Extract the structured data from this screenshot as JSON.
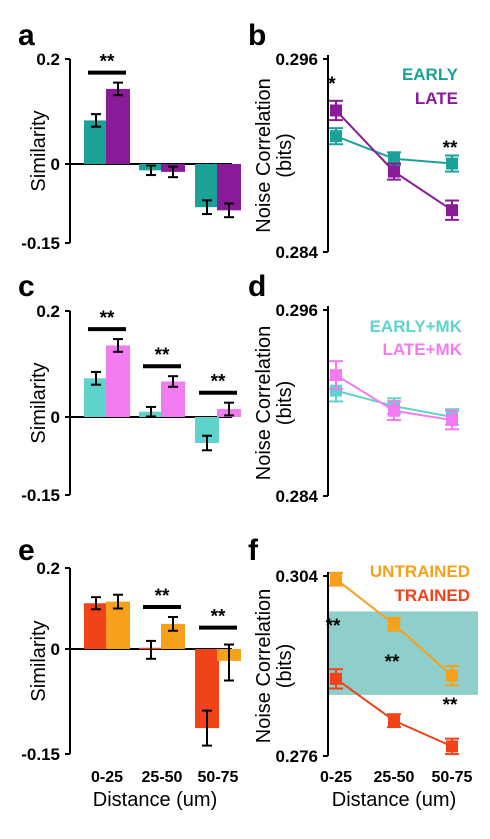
{
  "panel_letters": [
    "a",
    "b",
    "c",
    "d",
    "e",
    "f"
  ],
  "sig_marks": [
    "**",
    "*"
  ],
  "colors": {
    "early": "#1aa198",
    "late": "#8b1a99",
    "early_mk": "#5fd3cb",
    "late_mk": "#f27bf0",
    "untrained": "#f7a01c",
    "trained": "#f0431a",
    "shade": "#8fcfcb"
  },
  "chart_data": [
    {
      "panel": "a",
      "type": "bar",
      "ylabel": "Similarity",
      "ylim": [
        -0.15,
        0.2
      ],
      "yticks": [
        "0.2",
        "0",
        "-0.15"
      ],
      "categories": [
        "0-25",
        "25-50",
        "50-75"
      ],
      "series": [
        {
          "values": [
            0.083,
            -0.012,
            -0.082
          ],
          "err": [
            0.012,
            0.009,
            0.013
          ]
        },
        {
          "values": [
            0.143,
            -0.015,
            -0.088
          ],
          "err": [
            0.012,
            0.01,
            0.013
          ]
        }
      ],
      "significance": [
        {
          "category": 0,
          "label": "**"
        }
      ]
    },
    {
      "panel": "b",
      "type": "line",
      "ylabel": "Noise Correlation (bits)",
      "ylim": [
        0.284,
        0.296
      ],
      "yticks": [
        "0.296",
        "0.284"
      ],
      "categories": [
        "0-25",
        "25-50",
        "50-75"
      ],
      "series": [
        {
          "name": "EARLY",
          "values": [
            0.2912,
            0.2898,
            0.2895
          ],
          "err": [
            0.0005,
            0.0004,
            0.0005
          ]
        },
        {
          "name": "LATE",
          "values": [
            0.2928,
            0.289,
            0.2866
          ],
          "err": [
            0.0006,
            0.0005,
            0.0006
          ]
        }
      ],
      "significance": [
        {
          "category": 0,
          "label": "*"
        },
        {
          "category": 2,
          "label": "**"
        }
      ],
      "legend": "top-right"
    },
    {
      "panel": "c",
      "type": "bar",
      "ylabel": "Similarity",
      "ylim": [
        -0.15,
        0.2
      ],
      "yticks": [
        "0.2",
        "0",
        "-0.15"
      ],
      "categories": [
        "0-25",
        "25-50",
        "50-75"
      ],
      "series": [
        {
          "values": [
            0.073,
            0.01,
            -0.05
          ],
          "err": [
            0.012,
            0.009,
            0.014
          ]
        },
        {
          "values": [
            0.135,
            0.067,
            0.015
          ],
          "err": [
            0.012,
            0.01,
            0.012
          ]
        }
      ],
      "significance": [
        {
          "category": 0,
          "label": "**"
        },
        {
          "category": 1,
          "label": "**"
        },
        {
          "category": 2,
          "label": "**"
        }
      ]
    },
    {
      "panel": "d",
      "type": "line",
      "ylabel": "Noise Correlation (bits)",
      "ylim": [
        0.284,
        0.296
      ],
      "yticks": [
        "0.296",
        "0.284"
      ],
      "categories": [
        "0-25",
        "25-50",
        "50-75"
      ],
      "series": [
        {
          "name": "EARLY+MK",
          "values": [
            0.2908,
            0.2898,
            0.2891
          ],
          "err": [
            0.0007,
            0.0005,
            0.0005
          ]
        },
        {
          "name": "LATE+MK",
          "values": [
            0.2918,
            0.2895,
            0.2889
          ],
          "err": [
            0.0009,
            0.0006,
            0.0006
          ]
        }
      ],
      "legend": "top-right"
    },
    {
      "panel": "e",
      "type": "bar",
      "ylabel": "Similarity",
      "xlabel": "Distance (um)",
      "ylim": [
        -0.15,
        0.2
      ],
      "yticks": [
        "0.2",
        "0",
        "-0.15"
      ],
      "categories": [
        "0-25",
        "25-50",
        "50-75"
      ],
      "series": [
        {
          "values": [
            0.113,
            0.003,
            -0.113
          ],
          "err": [
            0.015,
            0.017,
            0.025
          ]
        },
        {
          "values": [
            0.117,
            0.062,
            -0.017
          ],
          "err": [
            0.017,
            0.017,
            0.028
          ]
        }
      ],
      "significance": [
        {
          "category": 1,
          "label": "**"
        },
        {
          "category": 2,
          "label": "**"
        }
      ]
    },
    {
      "panel": "f",
      "type": "line",
      "ylabel": "Noise Correlation (bits)",
      "xlabel": "Distance (um)",
      "ylim": [
        0.276,
        0.304
      ],
      "yticks": [
        "0.304",
        "0.276"
      ],
      "categories": [
        "0-25",
        "25-50",
        "50-75"
      ],
      "series": [
        {
          "name": "UNTRAINED",
          "values": [
            0.3035,
            0.2965,
            0.2885
          ],
          "err": [
            0.001,
            0.001,
            0.0015
          ]
        },
        {
          "name": "TRAINED",
          "values": [
            0.288,
            0.2815,
            0.2775
          ],
          "err": [
            0.0015,
            0.001,
            0.0012
          ]
        }
      ],
      "shaded_band": [
        0.2855,
        0.2985
      ],
      "significance": [
        {
          "category": 0,
          "label": "**"
        },
        {
          "category": 1,
          "label": "**"
        },
        {
          "category": 2,
          "label": "**"
        }
      ],
      "legend": "top-right"
    }
  ]
}
